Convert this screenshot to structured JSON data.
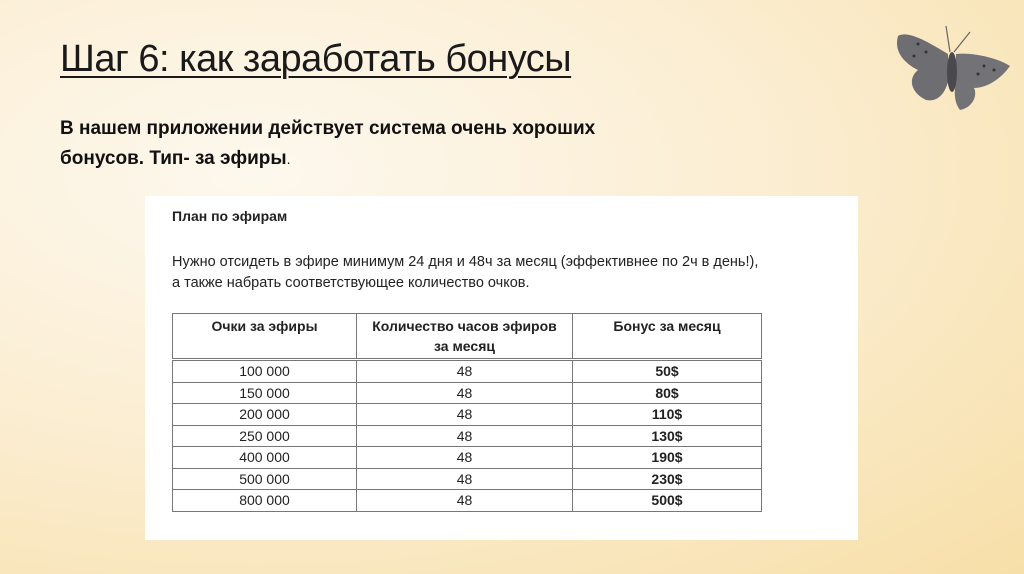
{
  "slide": {
    "title": "Шаг 6: как заработать бонусы",
    "intro_line1": "В нашем приложении действует система очень хороших",
    "intro_line2": "бонусов. Тип- за эфиры",
    "intro_dot": ".",
    "decoration": "butterfly-image"
  },
  "panel": {
    "title": "План по эфирам",
    "desc_line1": "Нужно отсидеть в эфире минимум 24 дня и 48ч за месяц (эффективнее по 2ч в день!),",
    "desc_line2": "а также набрать соответствующее количество очков.",
    "table": {
      "headers": [
        "Очки за эфиры",
        "Количество часов эфиров за месяц",
        "Бонус за месяц"
      ],
      "rows": [
        [
          "100 000",
          "48",
          "50$"
        ],
        [
          "150 000",
          "48",
          "80$"
        ],
        [
          "200 000",
          "48",
          "110$"
        ],
        [
          "250 000",
          "48",
          "130$"
        ],
        [
          "400 000",
          "48",
          "190$"
        ],
        [
          "500 000",
          "48",
          "230$"
        ],
        [
          "800 000",
          "48",
          "500$"
        ]
      ]
    }
  }
}
